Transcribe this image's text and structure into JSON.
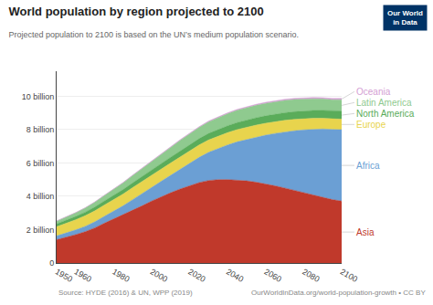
{
  "chart_data": {
    "type": "area",
    "stacked": true,
    "title": "World population by region projected to 2100",
    "subtitle": "Projected population to 2100 is based on the UN’s medium population scenario.",
    "annotations": [
      "Source: HYDE (2016) & UN, WPP (2019)",
      "OurWorldInData.org/world-population-growth • CC BY",
      "Our World\nin Data"
    ],
    "x": [
      1950,
      1955,
      1960,
      1965,
      1970,
      1975,
      1980,
      1985,
      1990,
      1995,
      2000,
      2005,
      2010,
      2015,
      2020,
      2025,
      2030,
      2035,
      2040,
      2045,
      2050,
      2055,
      2060,
      2065,
      2070,
      2075,
      2080,
      2085,
      2090,
      2095,
      2100
    ],
    "xlim": [
      1950,
      2100
    ],
    "xticks": [
      1950,
      1960,
      1980,
      2000,
      2020,
      2040,
      2060,
      2080,
      2100
    ],
    "ylim": [
      0,
      11500000000
    ],
    "yticks": [
      0,
      {
        "value": 2000000000,
        "label": "2 billion"
      },
      {
        "value": 4000000000,
        "label": "4 billion"
      },
      {
        "value": 6000000000,
        "label": "6 billion"
      },
      {
        "value": 8000000000,
        "label": "8 billion"
      },
      {
        "value": 10000000000,
        "label": "10 billion"
      }
    ],
    "grid": true,
    "series": [
      {
        "name": "Asia",
        "color": "#c0392b",
        "values": [
          1395000000,
          1534000000,
          1700000000,
          1876000000,
          2101000000,
          2379000000,
          2632000000,
          2887000000,
          3168000000,
          3430000000,
          3714000000,
          3973000000,
          4210000000,
          4436000000,
          4641000000,
          4822000000,
          4948000000,
          4997000000,
          5002000000,
          4978000000,
          4923000000,
          4843000000,
          4742000000,
          4625000000,
          4496000000,
          4360000000,
          4220000000,
          4078000000,
          3938000000,
          3804000000,
          3712000000
        ]
      },
      {
        "name": "Africa",
        "color": "#6b9fd4",
        "values": [
          228000000,
          257000000,
          285000000,
          320000000,
          363000000,
          412000000,
          473000000,
          544000000,
          631000000,
          718000000,
          814000000,
          923000000,
          1045000000,
          1189000000,
          1341000000,
          1510000000,
          1690000000,
          1878000000,
          2077000000,
          2287000000,
          2489000000,
          2703000000,
          2923000000,
          3144000000,
          3360000000,
          3567000000,
          3762000000,
          3941000000,
          4098000000,
          4207000000,
          4280000000
        ]
      },
      {
        "name": "Europe",
        "color": "#e8d44d",
        "values": [
          549000000,
          576000000,
          605000000,
          634000000,
          657000000,
          676000000,
          694000000,
          706000000,
          721000000,
          728000000,
          730000000,
          733000000,
          738000000,
          743000000,
          748000000,
          745000000,
          741000000,
          738000000,
          736000000,
          733000000,
          728000000,
          722000000,
          715000000,
          706000000,
          696000000,
          684000000,
          671000000,
          657000000,
          643000000,
          629000000,
          630000000
        ]
      },
      {
        "name": "North America",
        "color": "#5aac5a",
        "values": [
          172000000,
          185000000,
          199000000,
          214000000,
          231000000,
          243000000,
          256000000,
          269000000,
          283000000,
          298000000,
          314000000,
          328000000,
          344000000,
          358000000,
          369000000,
          379000000,
          391000000,
          401000000,
          411000000,
          421000000,
          430000000,
          438000000,
          445000000,
          451000000,
          456000000,
          460000000,
          463000000,
          465000000,
          467000000,
          470000000,
          490000000
        ]
      },
      {
        "name": "Latin America",
        "color": "#8fca8f",
        "values": [
          167000000,
          195000000,
          218000000,
          251000000,
          287000000,
          326000000,
          363000000,
          401000000,
          442000000,
          482000000,
          521000000,
          558000000,
          596000000,
          630000000,
          653000000,
          672000000,
          695000000,
          712000000,
          726000000,
          737000000,
          744000000,
          748000000,
          748000000,
          745000000,
          739000000,
          730000000,
          718000000,
          705000000,
          691000000,
          676000000,
          680000000
        ]
      },
      {
        "name": "Oceania",
        "color": "#d4a0d4",
        "values": [
          13000000,
          14000000,
          16000000,
          17000000,
          19000000,
          21000000,
          23000000,
          25000000,
          27000000,
          29000000,
          31000000,
          33000000,
          37000000,
          39000000,
          42000000,
          44000000,
          47000000,
          50000000,
          53000000,
          56000000,
          59000000,
          62000000,
          64000000,
          67000000,
          69000000,
          72000000,
          74000000,
          76000000,
          78000000,
          79000000,
          80000000
        ]
      }
    ]
  }
}
